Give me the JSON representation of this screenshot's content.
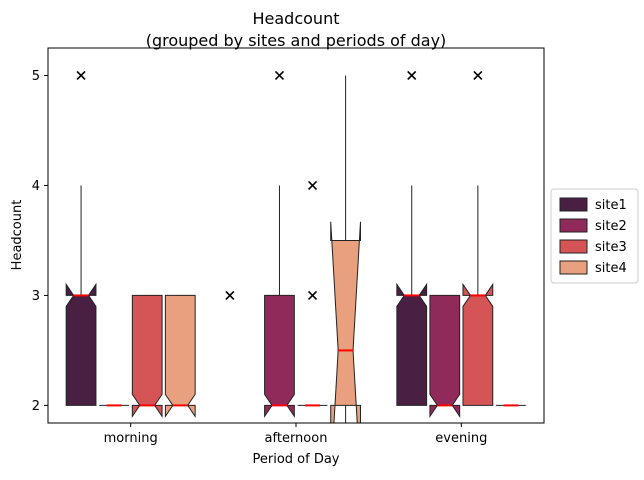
{
  "chart_data": {
    "type": "box",
    "title": "Headcount",
    "subtitle": "(grouped by sites and periods of day)",
    "xlabel": "Period of Day",
    "ylabel": "Headcount",
    "categories": [
      "morning",
      "afternoon",
      "evening"
    ],
    "ylim": [
      1.84,
      5.25
    ],
    "yticks": [
      2,
      3,
      4,
      5
    ],
    "grid": false,
    "legend_position": "right",
    "notched": true,
    "median_color": "#ff0000",
    "series": [
      {
        "name": "site1",
        "color": "#4a1f44",
        "boxes": [
          {
            "min": 2,
            "q1": 2,
            "median": 3,
            "q3": 3,
            "max": 4,
            "notch_low": 2.9,
            "notch_high": 3.1,
            "outliers": [
              5
            ]
          },
          null,
          {
            "min": 2,
            "q1": 2,
            "median": 3,
            "q3": 3,
            "max": 4,
            "notch_low": 2.9,
            "notch_high": 3.1,
            "outliers": [
              5
            ]
          }
        ]
      },
      {
        "name": "site2",
        "color": "#902a5b",
        "boxes": [
          {
            "min": 2,
            "q1": 2,
            "median": 2,
            "q3": 2,
            "max": 2,
            "notch_low": 2,
            "notch_high": 2,
            "outliers": []
          },
          {
            "min": 2,
            "q1": 2,
            "median": 2,
            "q3": 3,
            "max": 4,
            "notch_low": 1.9,
            "notch_high": 2.1,
            "outliers": [
              5
            ]
          },
          {
            "min": 2,
            "q1": 2,
            "median": 2,
            "q3": 3,
            "max": 3,
            "notch_low": 1.9,
            "notch_high": 2.1,
            "outliers": []
          }
        ]
      },
      {
        "name": "site3",
        "color": "#d55557",
        "boxes": [
          {
            "min": 2,
            "q1": 2,
            "median": 2,
            "q3": 3,
            "max": 3,
            "notch_low": 1.9,
            "notch_high": 2.1,
            "outliers": []
          },
          {
            "min": 2,
            "q1": 2,
            "median": 2,
            "q3": 2,
            "max": 2,
            "notch_low": 2,
            "notch_high": 2,
            "outliers": [
              3,
              4
            ]
          },
          {
            "min": 2,
            "q1": 2,
            "median": 3,
            "q3": 3,
            "max": 4,
            "notch_low": 2.9,
            "notch_high": 3.1,
            "outliers": [
              5
            ]
          }
        ]
      },
      {
        "name": "site4",
        "color": "#e8a07e",
        "boxes": [
          {
            "min": 2,
            "q1": 2,
            "median": 2,
            "q3": 3,
            "max": 3,
            "notch_low": 1.9,
            "notch_high": 2.1,
            "outliers": []
          },
          {
            "min": 1.5,
            "q1": 2.0,
            "median": 2.5,
            "q3": 3.5,
            "max": 5,
            "notch_low": 1.33,
            "notch_high": 3.67,
            "outliers": []
          },
          {
            "min": 2,
            "q1": 2,
            "median": 2,
            "q3": 2,
            "max": 2,
            "notch_low": 2,
            "notch_high": 2,
            "outliers": []
          }
        ]
      }
    ],
    "group_outliers": [
      {
        "category": "afternoon",
        "value": 3
      }
    ]
  }
}
